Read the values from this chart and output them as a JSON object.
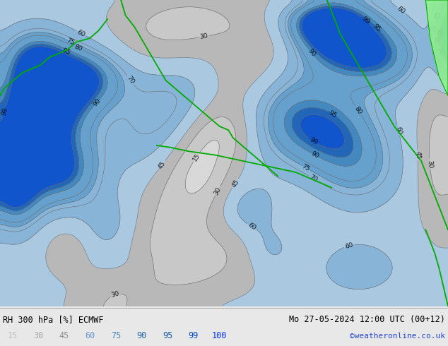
{
  "title_left": "RH 300 hPa [%] ECMWF",
  "title_right": "Mo 27-05-2024 12:00 UTC (00+12)",
  "credit": "©weatheronline.co.uk",
  "colorbar_levels": [
    15,
    30,
    45,
    60,
    75,
    90,
    95,
    99,
    100
  ],
  "colorbar_label_colors": [
    "#c0c0c0",
    "#a8a8a8",
    "#909090",
    "#6699cc",
    "#4488bb",
    "#2266aa",
    "#1155aa",
    "#0044cc",
    "#0033ff"
  ],
  "fill_levels": [
    0,
    15,
    30,
    45,
    60,
    75,
    90,
    95,
    99,
    101
  ],
  "fill_colors": [
    "#d8d8d8",
    "#c8c8c8",
    "#b8b8b8",
    "#aac8e0",
    "#88b4d8",
    "#66a0cc",
    "#4488c0",
    "#2266b8",
    "#1155cc"
  ],
  "contour_color": "#707070",
  "contour_levels": [
    15,
    30,
    45,
    60,
    70,
    75,
    80,
    90,
    95,
    99
  ],
  "label_color": "#000000",
  "green_color": "#00aa00",
  "light_green_fill": "#90ee90",
  "bg_color": "#d0d0d0",
  "bar_bg": "#e8e8e8",
  "figsize": [
    6.34,
    4.9
  ],
  "dpi": 100
}
